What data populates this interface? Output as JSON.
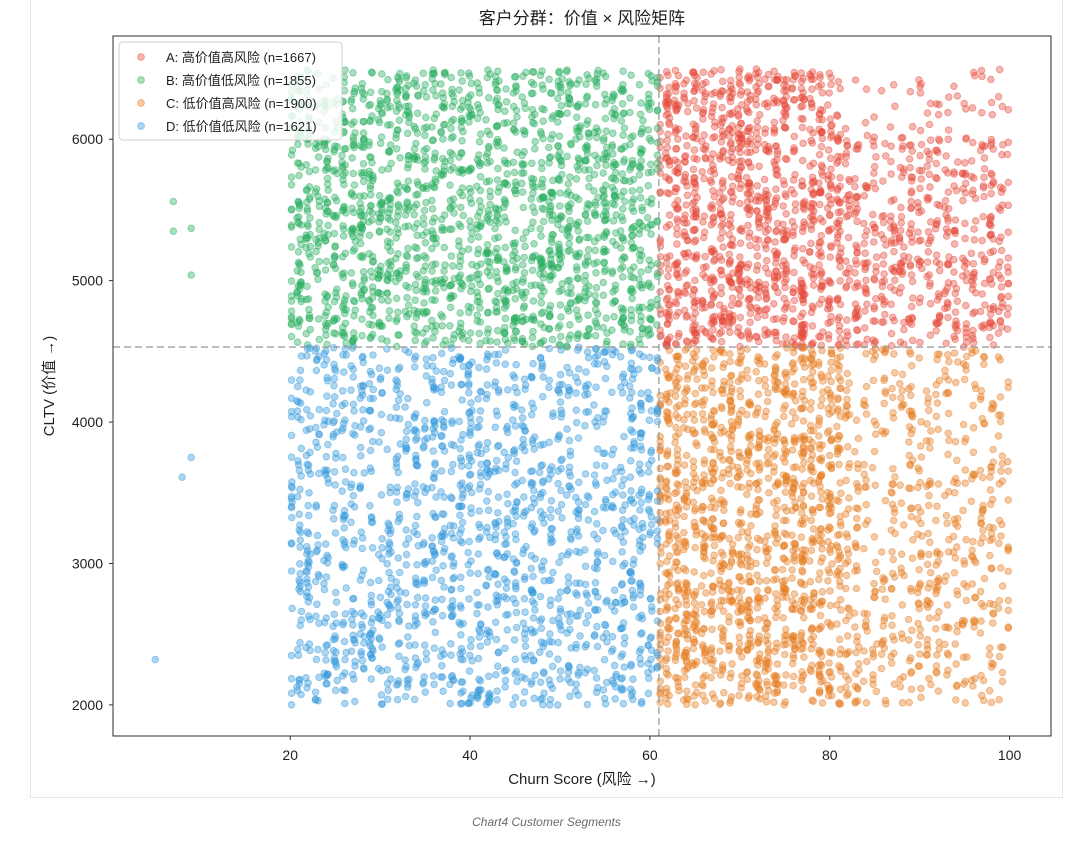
{
  "caption": "Chart4 Customer Segments",
  "chart_data": {
    "type": "scatter",
    "title": "客户分群：价值 × 风险矩阵",
    "xlabel": "Churn Score (风险 →)",
    "ylabel": "CLTV (价值 →)",
    "xlim": [
      0.3,
      104.6
    ],
    "ylim": [
      1780,
      6730
    ],
    "xticks": [
      20,
      40,
      60,
      80,
      100
    ],
    "yticks": [
      2000,
      3000,
      4000,
      5000,
      6000
    ],
    "grid": false,
    "legend_position": "upper left",
    "reference_lines": {
      "x": 61,
      "y": 4530,
      "style": "dashed",
      "color": "#999999"
    },
    "series": [
      {
        "name": "A: 高价值高风险 (n=1667)",
        "n": 1667,
        "color": "#e74c3c",
        "x_range": [
          61,
          100
        ],
        "y_range": [
          4530,
          6500
        ],
        "outlier_points": []
      },
      {
        "name": "B: 高价值低风险 (n=1855)",
        "n": 1855,
        "color": "#27ae60",
        "x_range": [
          20,
          61
        ],
        "y_range": [
          4530,
          6490
        ],
        "outlier_points": [
          [
            7,
            5560
          ],
          [
            7,
            5350
          ],
          [
            9,
            5370
          ],
          [
            9,
            5040
          ]
        ]
      },
      {
        "name": "C: 低价值高风险 (n=1900)",
        "n": 1900,
        "color": "#e67e22",
        "x_range": [
          61,
          100
        ],
        "y_range": [
          2000,
          4530
        ],
        "outlier_points": []
      },
      {
        "name": "D: 低价值低风险 (n=1621)",
        "n": 1621,
        "color": "#3498db",
        "x_range": [
          20,
          61
        ],
        "y_range": [
          2000,
          4530
        ],
        "outlier_points": [
          [
            9,
            3750
          ],
          [
            8,
            3610
          ],
          [
            5,
            2320
          ]
        ]
      }
    ]
  }
}
